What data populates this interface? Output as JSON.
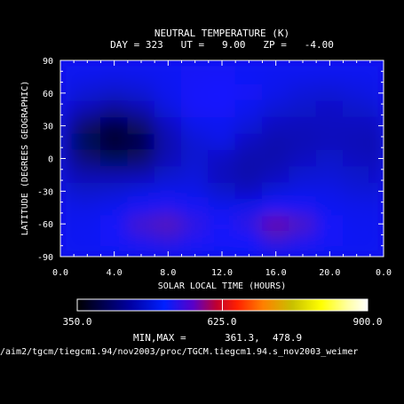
{
  "chart_data": {
    "type": "heatmap",
    "title": "NEUTRAL TEMPERATURE (K)",
    "subtitle": "DAY = 323   UT =   9.00   ZP =   -4.00",
    "xlabel": "SOLAR LOCAL TIME (HOURS)",
    "ylabel": "LATITUDE (DEGREES GEOGRAPHIC)",
    "xlim": [
      0,
      24
    ],
    "ylim": [
      -90,
      90
    ],
    "x_ticks": [
      "0.0",
      "4.0",
      "8.0",
      "12.0",
      "16.0",
      "20.0",
      "0.0"
    ],
    "x_tick_values": [
      0,
      4,
      8,
      12,
      16,
      20,
      24
    ],
    "y_ticks": [
      "90",
      "60",
      "30",
      "0",
      "-30",
      "-60",
      "-90"
    ],
    "y_tick_values": [
      90,
      60,
      30,
      0,
      -30,
      -60,
      -90
    ],
    "colorbar": {
      "min_label": "350.0",
      "mid_label": "625.0",
      "max_label": "900.0",
      "range": [
        350,
        900
      ]
    },
    "min_max_label": "MIN,MAX =",
    "min_value": "361.3,",
    "max_value": "478.9",
    "x_hours": [
      0,
      2,
      4,
      6,
      8,
      10,
      12,
      14,
      16,
      18,
      20,
      22,
      24
    ],
    "y_lats": [
      90,
      75,
      60,
      45,
      30,
      15,
      0,
      -15,
      -30,
      -45,
      -60,
      -75,
      -90
    ],
    "values": [
      [
        440,
        440,
        440,
        440,
        440,
        440,
        440,
        440,
        440,
        440,
        440,
        440,
        440
      ],
      [
        425,
        420,
        418,
        420,
        428,
        435,
        438,
        432,
        425,
        422,
        420,
        422,
        425
      ],
      [
        420,
        410,
        405,
        410,
        425,
        440,
        445,
        435,
        420,
        412,
        410,
        415,
        420
      ],
      [
        410,
        395,
        385,
        392,
        415,
        438,
        440,
        425,
        410,
        405,
        402,
        405,
        410
      ],
      [
        400,
        375,
        365,
        375,
        400,
        420,
        428,
        412,
        400,
        398,
        400,
        400,
        400
      ],
      [
        392,
        370,
        362,
        368,
        392,
        410,
        418,
        400,
        392,
        395,
        398,
        396,
        392
      ],
      [
        395,
        378,
        370,
        375,
        395,
        408,
        402,
        392,
        392,
        400,
        405,
        400,
        395
      ],
      [
        402,
        392,
        390,
        392,
        405,
        412,
        398,
        390,
        398,
        408,
        410,
        405,
        402
      ],
      [
        410,
        405,
        408,
        415,
        420,
        418,
        405,
        400,
        412,
        418,
        418,
        412,
        410
      ],
      [
        420,
        418,
        425,
        440,
        448,
        438,
        425,
        428,
        445,
        440,
        428,
        420,
        420
      ],
      [
        428,
        428,
        440,
        462,
        470,
        455,
        440,
        455,
        478,
        465,
        440,
        428,
        428
      ],
      [
        430,
        430,
        438,
        450,
        455,
        448,
        440,
        445,
        458,
        450,
        436,
        430,
        430
      ],
      [
        432,
        432,
        432,
        432,
        432,
        432,
        432,
        432,
        432,
        432,
        432,
        432,
        432
      ]
    ]
  },
  "footer": {
    "path": "/aim2/tgcm/tiegcm1.94/nov2003/proc/TGCM.tiegcm1.94.s_nov2003_weimer"
  }
}
